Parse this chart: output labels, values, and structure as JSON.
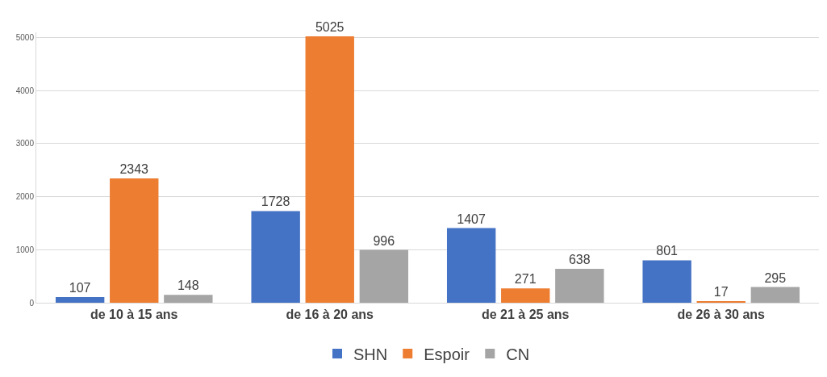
{
  "chart_data": {
    "type": "bar",
    "categories": [
      "de 10 à 15 ans",
      "de 16 à 20 ans",
      "de 21 à 25 ans",
      "de 26 à 30 ans"
    ],
    "series": [
      {
        "name": "SHN",
        "color": "#4472c4",
        "values": [
          107,
          1728,
          1407,
          801
        ]
      },
      {
        "name": "Espoir",
        "color": "#ed7d31",
        "values": [
          2343,
          5025,
          271,
          17
        ]
      },
      {
        "name": "CN",
        "color": "#a5a5a5",
        "values": [
          148,
          996,
          638,
          295
        ]
      }
    ],
    "ylim": [
      0,
      5100
    ],
    "yticks": [
      0,
      1000,
      2000,
      3000,
      4000,
      5000
    ],
    "grid": "y",
    "legend": "bottom",
    "data_labels": true
  }
}
